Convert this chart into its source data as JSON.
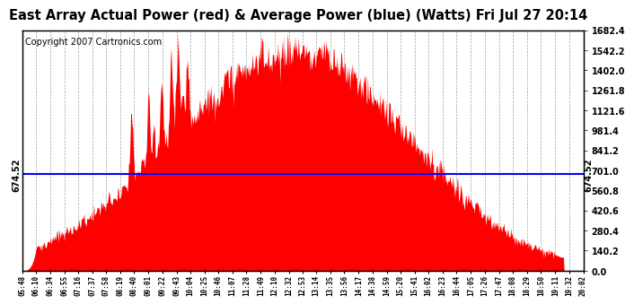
{
  "title": "East Array Actual Power (red) & Average Power (blue) (Watts) Fri Jul 27 20:14",
  "copyright": "Copyright 2007 Cartronics.com",
  "average_power": 674.52,
  "ylim": [
    0.0,
    1682.4
  ],
  "yticks": [
    0.0,
    140.2,
    280.4,
    420.6,
    560.8,
    701.0,
    841.2,
    981.4,
    1121.6,
    1261.8,
    1402.0,
    1542.2,
    1682.4
  ],
  "fill_color": "#FF0000",
  "line_color": "#0000FF",
  "background_color": "#FFFFFF",
  "grid_color": "#999999",
  "title_fontsize": 10.5,
  "copyright_fontsize": 7,
  "x_labels": [
    "05:48",
    "06:10",
    "06:34",
    "06:55",
    "07:16",
    "07:37",
    "07:58",
    "08:19",
    "08:40",
    "09:01",
    "09:22",
    "09:43",
    "10:04",
    "10:25",
    "10:46",
    "11:07",
    "11:28",
    "11:49",
    "12:10",
    "12:32",
    "12:53",
    "13:14",
    "13:35",
    "13:56",
    "14:17",
    "14:38",
    "14:59",
    "15:20",
    "15:41",
    "16:02",
    "16:23",
    "16:44",
    "17:05",
    "17:26",
    "17:47",
    "18:08",
    "18:29",
    "18:50",
    "19:11",
    "19:32",
    "20:02"
  ]
}
